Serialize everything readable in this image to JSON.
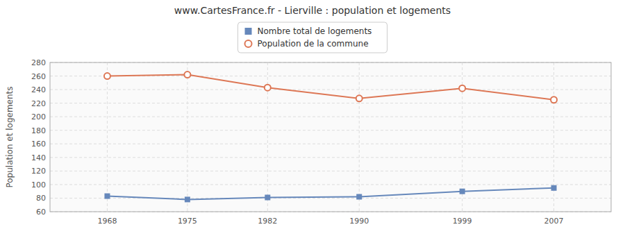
{
  "chart_data": {
    "type": "line",
    "title": "www.CartesFrance.fr - Lierville : population et logements",
    "y_label": "Population et logements",
    "x": [
      1968,
      1975,
      1982,
      1990,
      1999,
      2007
    ],
    "series": [
      {
        "name": "Nombre total de logements",
        "color": "#6688bb",
        "marker": "square",
        "line_style": "solid",
        "values": [
          83,
          78,
          81,
          82,
          90,
          95
        ]
      },
      {
        "name": "Population de la commune",
        "color": "#dd7755",
        "marker": "circle",
        "line_style": "solid",
        "values": [
          260,
          262,
          243,
          227,
          242,
          225
        ]
      }
    ],
    "xlim": [
      1963,
      2012
    ],
    "xticks": [
      1968,
      1975,
      1982,
      1990,
      1999,
      2007
    ],
    "ylim": [
      60,
      280
    ],
    "yticks": [
      60,
      80,
      100,
      120,
      140,
      160,
      180,
      200,
      220,
      240,
      260,
      280
    ],
    "grid": true,
    "legend": "top"
  }
}
